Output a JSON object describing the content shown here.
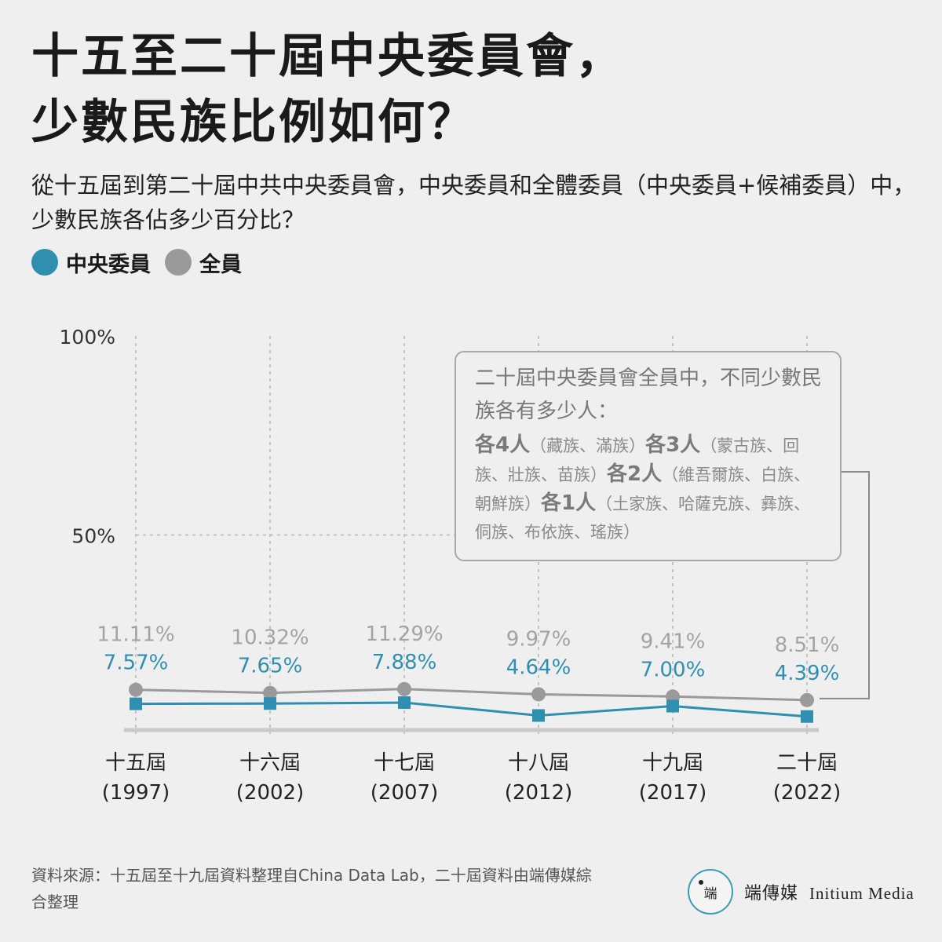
{
  "header": {
    "title_line1": "十五至二十屆中央委員會，",
    "title_line2": "少數民族比例如何？",
    "subtitle": "從十五屆到第二十屆中共中央委員會，中央委員和全體委員（中央委員+候補委員）中，少數民族各佔多少百分比？"
  },
  "legend": [
    {
      "label": "中央委員",
      "color": "#2f8fb0"
    },
    {
      "label": "全員",
      "color": "#9a9a9a"
    }
  ],
  "chart_data": {
    "type": "line",
    "categories": [
      "十五屆",
      "十六屆",
      "十七屆",
      "十八屆",
      "十九屆",
      "二十屆"
    ],
    "years": [
      "(1997)",
      "(2002)",
      "(2007)",
      "(2012)",
      "(2017)",
      "(2022)"
    ],
    "y_ticks": [
      "100%",
      "50%"
    ],
    "ylim": [
      0,
      100
    ],
    "grid": true,
    "series": [
      {
        "name": "全員",
        "color": "#9a9a9a",
        "label_color": "#a3a3a3",
        "marker": "circle",
        "values": [
          11.11,
          10.32,
          11.29,
          9.97,
          9.41,
          8.51
        ],
        "labels": [
          "11.11%",
          "10.32%",
          "11.29%",
          "9.97%",
          "9.41%",
          "8.51%"
        ]
      },
      {
        "name": "中央委員",
        "color": "#2f8fb0",
        "label_color": "#2f8fb0",
        "marker": "square",
        "values": [
          7.57,
          7.65,
          7.88,
          4.64,
          7.0,
          4.39
        ],
        "labels": [
          "7.57%",
          "7.65%",
          "7.88%",
          "4.64%",
          "7.00%",
          "4.39%"
        ]
      }
    ]
  },
  "callout": {
    "heading": "二十屆中央委員會全員中，不同少數民族各有多少人：",
    "groups": [
      {
        "count": "各4人",
        "names": "（藏族、滿族）"
      },
      {
        "count": "各3人",
        "names": "（蒙古族、回族、壯族、苗族）"
      },
      {
        "count": "各2人",
        "names": "（維吾爾族、白族、朝鮮族）"
      },
      {
        "count": "各1人",
        "names": "（土家族、哈薩克族、彝族、侗族、布依族、瑤族）"
      }
    ]
  },
  "footer": {
    "source": "資料來源：十五屆至十九屆資料整理自China Data Lab，二十屆資料由端傳媒綜合整理",
    "brand_logo": "端",
    "brand_cn": "端傳媒",
    "brand_en": "Initium Media"
  }
}
